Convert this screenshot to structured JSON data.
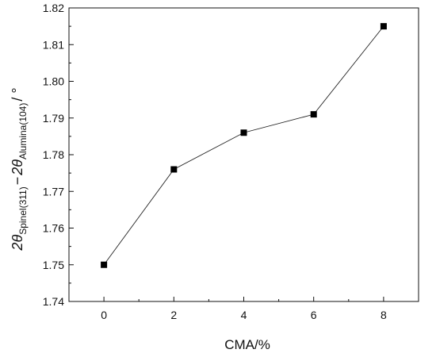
{
  "chart_data": {
    "type": "line",
    "x": [
      0,
      2,
      4,
      6,
      8
    ],
    "series": [
      {
        "values": [
          1.75,
          1.776,
          1.786,
          1.791,
          1.815
        ],
        "color": "#000000",
        "marker": "square"
      }
    ],
    "xlabel": "CMA/%",
    "ylabel": {
      "base1": "2θ",
      "sub1": "Spinel(311)",
      "minus": "−",
      "base2": "2θ",
      "sub2": "Alumina(104)",
      "unit": "/ °"
    },
    "xlim": [
      -1,
      9
    ],
    "ylim": [
      1.74,
      1.82
    ],
    "xticks": [
      "0",
      "2",
      "4",
      "6",
      "8"
    ],
    "yticks": [
      "1.74",
      "1.75",
      "1.76",
      "1.77",
      "1.78",
      "1.79",
      "1.80",
      "1.81",
      "1.82"
    ],
    "grid": false,
    "legend": "none"
  }
}
